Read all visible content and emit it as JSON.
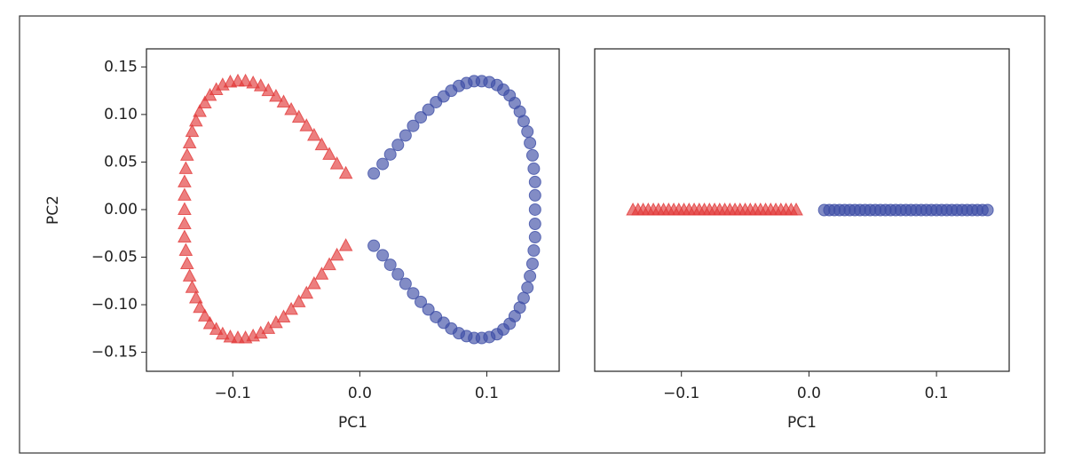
{
  "chart_data": [
    {
      "type": "scatter",
      "xlabel": "PC1",
      "ylabel": "PC2",
      "xlim": [
        -0.168,
        0.157
      ],
      "ylim": [
        -0.17,
        0.169
      ],
      "xticks": [
        {
          "value": -0.1,
          "label": "−0.1"
        },
        {
          "value": 0,
          "label": "0.0"
        },
        0.1
      ],
      "yticks": [
        {
          "value": -0.15,
          "label": "−0.15"
        },
        {
          "value": -0.1,
          "label": "−0.10"
        },
        {
          "value": -0.05,
          "label": "−0.05"
        },
        {
          "value": 0,
          "label": "0.00"
        },
        0.05,
        {
          "value": 0.1,
          "label": "0.10"
        },
        0.15
      ],
      "series": [
        {
          "color": "#e23b3b",
          "marker": "triangle",
          "x": [
            -0.011,
            -0.018,
            -0.024,
            -0.03,
            -0.036,
            -0.042,
            -0.048,
            -0.054,
            -0.06,
            -0.066,
            -0.072,
            -0.078,
            -0.084,
            -0.09,
            -0.096,
            -0.102,
            -0.108,
            -0.113,
            -0.118,
            -0.122,
            -0.126,
            -0.129,
            -0.132,
            -0.134,
            -0.136,
            -0.137,
            -0.138,
            -0.138,
            -0.138,
            -0.138,
            -0.138,
            -0.137,
            -0.136,
            -0.134,
            -0.132,
            -0.129,
            -0.126,
            -0.122,
            -0.118,
            -0.113,
            -0.108,
            -0.102,
            -0.096,
            -0.09,
            -0.084,
            -0.078,
            -0.072,
            -0.066,
            -0.06,
            -0.054,
            -0.048,
            -0.042,
            -0.036,
            -0.03,
            -0.024,
            -0.018,
            -0.011
          ],
          "values": [
            0.038,
            0.048,
            0.058,
            0.068,
            0.078,
            0.088,
            0.097,
            0.105,
            0.113,
            0.119,
            0.125,
            0.13,
            0.133,
            0.135,
            0.135,
            0.134,
            0.131,
            0.126,
            0.12,
            0.112,
            0.103,
            0.093,
            0.082,
            0.07,
            0.057,
            0.043,
            0.029,
            0.015,
            0.0,
            -0.015,
            -0.029,
            -0.043,
            -0.057,
            -0.07,
            -0.082,
            -0.093,
            -0.103,
            -0.112,
            -0.12,
            -0.126,
            -0.131,
            -0.134,
            -0.135,
            -0.135,
            -0.133,
            -0.13,
            -0.125,
            -0.119,
            -0.113,
            -0.105,
            -0.097,
            -0.088,
            -0.078,
            -0.068,
            -0.058,
            -0.048,
            -0.038
          ]
        },
        {
          "color": "#3f4fa6",
          "marker": "circle",
          "x": [
            0.011,
            0.018,
            0.024,
            0.03,
            0.036,
            0.042,
            0.048,
            0.054,
            0.06,
            0.066,
            0.072,
            0.078,
            0.084,
            0.09,
            0.096,
            0.102,
            0.108,
            0.113,
            0.118,
            0.122,
            0.126,
            0.129,
            0.132,
            0.134,
            0.136,
            0.137,
            0.138,
            0.138,
            0.138,
            0.138,
            0.138,
            0.137,
            0.136,
            0.134,
            0.132,
            0.129,
            0.126,
            0.122,
            0.118,
            0.113,
            0.108,
            0.102,
            0.096,
            0.09,
            0.084,
            0.078,
            0.072,
            0.066,
            0.06,
            0.054,
            0.048,
            0.042,
            0.036,
            0.03,
            0.024,
            0.018,
            0.011
          ],
          "values": [
            0.038,
            0.048,
            0.058,
            0.068,
            0.078,
            0.088,
            0.097,
            0.105,
            0.113,
            0.119,
            0.125,
            0.13,
            0.133,
            0.135,
            0.135,
            0.134,
            0.131,
            0.126,
            0.12,
            0.112,
            0.103,
            0.093,
            0.082,
            0.07,
            0.057,
            0.043,
            0.029,
            0.015,
            0.0,
            -0.015,
            -0.029,
            -0.043,
            -0.057,
            -0.07,
            -0.082,
            -0.093,
            -0.103,
            -0.112,
            -0.12,
            -0.126,
            -0.131,
            -0.134,
            -0.135,
            -0.135,
            -0.133,
            -0.13,
            -0.125,
            -0.119,
            -0.113,
            -0.105,
            -0.097,
            -0.088,
            -0.078,
            -0.068,
            -0.058,
            -0.048,
            -0.038
          ]
        }
      ]
    },
    {
      "type": "scatter",
      "xlabel": "PC1",
      "xlim": [
        -0.168,
        0.157
      ],
      "ylim": [
        -0.055,
        0.055
      ],
      "xticks": [
        {
          "value": -0.1,
          "label": "−0.1"
        },
        {
          "value": 0,
          "label": "0.0"
        },
        0.1
      ],
      "series": [
        {
          "color": "#e23b3b",
          "marker": "triangle",
          "x": [
            -0.138,
            -0.134,
            -0.13,
            -0.126,
            -0.122,
            -0.118,
            -0.114,
            -0.11,
            -0.106,
            -0.102,
            -0.098,
            -0.094,
            -0.09,
            -0.086,
            -0.082,
            -0.078,
            -0.074,
            -0.07,
            -0.066,
            -0.062,
            -0.058,
            -0.054,
            -0.05,
            -0.046,
            -0.042,
            -0.038,
            -0.034,
            -0.03,
            -0.026,
            -0.022,
            -0.018,
            -0.014,
            -0.01
          ],
          "values": [
            0,
            0,
            0,
            0,
            0,
            0,
            0,
            0,
            0,
            0,
            0,
            0,
            0,
            0,
            0,
            0,
            0,
            0,
            0,
            0,
            0,
            0,
            0,
            0,
            0,
            0,
            0,
            0,
            0,
            0,
            0,
            0,
            0
          ]
        },
        {
          "color": "#3f4fa6",
          "marker": "circle",
          "x": [
            0.012,
            0.016,
            0.02,
            0.024,
            0.028,
            0.032,
            0.036,
            0.04,
            0.044,
            0.048,
            0.052,
            0.056,
            0.06,
            0.064,
            0.068,
            0.072,
            0.076,
            0.08,
            0.084,
            0.088,
            0.092,
            0.096,
            0.1,
            0.104,
            0.108,
            0.112,
            0.116,
            0.12,
            0.124,
            0.128,
            0.132,
            0.136,
            0.14
          ],
          "values": [
            0,
            0,
            0,
            0,
            0,
            0,
            0,
            0,
            0,
            0,
            0,
            0,
            0,
            0,
            0,
            0,
            0,
            0,
            0,
            0,
            0,
            0,
            0,
            0,
            0,
            0,
            0,
            0,
            0,
            0,
            0,
            0,
            0
          ]
        }
      ]
    }
  ]
}
